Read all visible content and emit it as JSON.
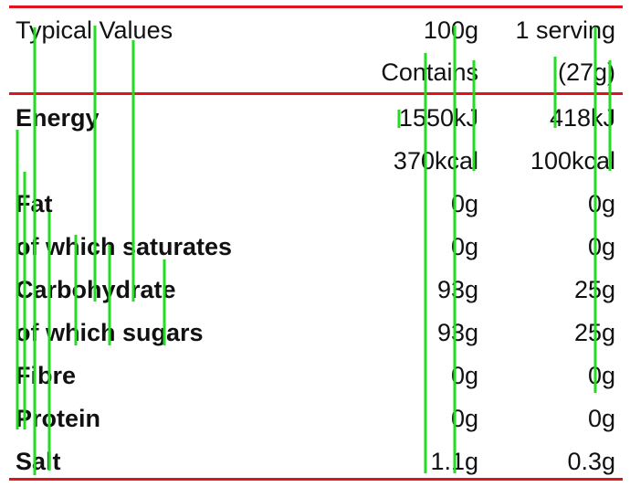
{
  "header": {
    "col_label": "Typical Values",
    "col_100g_line1": "100g",
    "col_100g_line2": "Contains",
    "col_serving_line1": "1 serving",
    "col_serving_line2": "(27g)"
  },
  "rows": [
    {
      "label": "Energy",
      "per100": "1550kJ",
      "serving": "418kJ",
      "bold": true
    },
    {
      "label": "",
      "per100": "370kcal",
      "serving": "100kcal",
      "bold": false
    },
    {
      "label": "Fat",
      "per100": "0g",
      "serving": "0g",
      "bold": true
    },
    {
      "label": "of which saturates",
      "per100": "0g",
      "serving": "0g",
      "bold": true
    },
    {
      "label": "Carbohydrate",
      "per100": "93g",
      "serving": "25g",
      "bold": true
    },
    {
      "label": "of which sugars",
      "per100": "93g",
      "serving": "25g",
      "bold": true
    },
    {
      "label": "Fibre",
      "per100": "0g",
      "serving": "0g",
      "bold": true
    },
    {
      "label": "Protein",
      "per100": "0g",
      "serving": "0g",
      "bold": true
    },
    {
      "label": "Salt",
      "per100": "1.1g",
      "serving": "0.3g",
      "bold": true
    }
  ],
  "colors": {
    "rule": "#e0141e",
    "guide": "#22dd22",
    "text": "#111111"
  }
}
